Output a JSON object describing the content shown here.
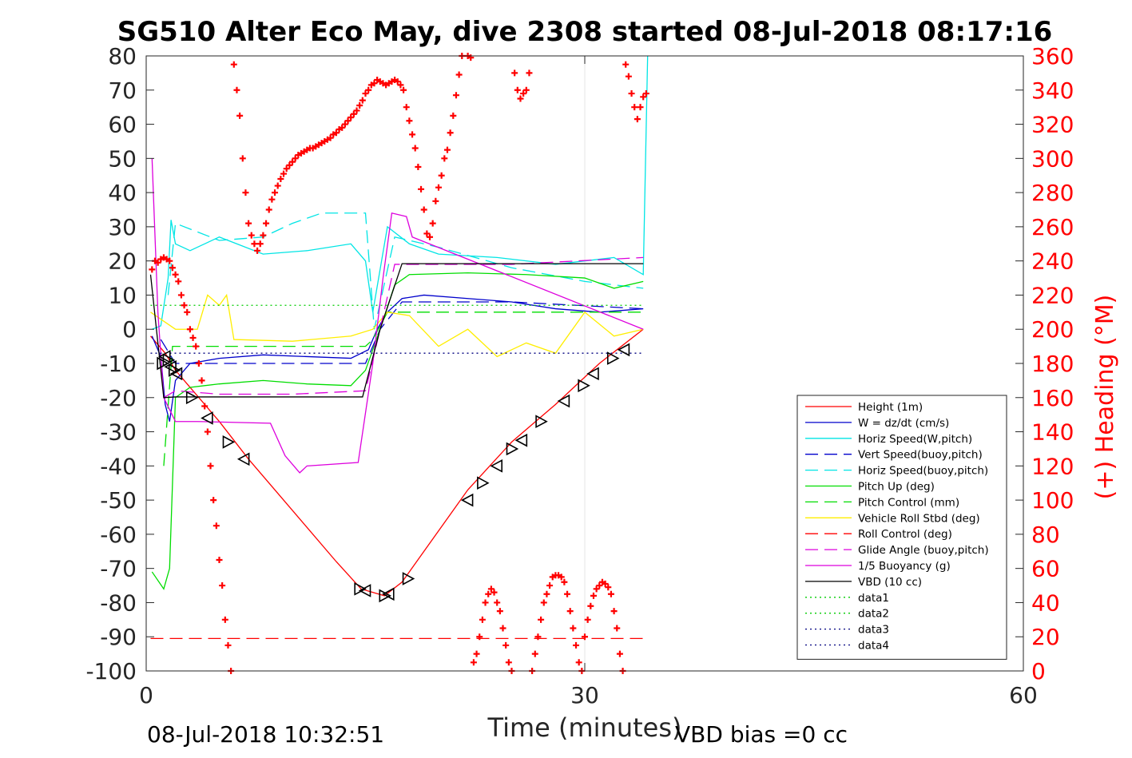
{
  "chart_data": {
    "type": "line",
    "title": "SG510 Alter Eco May, dive 2308 started 08-Jul-2018 08:17:16",
    "xlabel": "Time (minutes)",
    "ylabel": "",
    "y2label": "(+) Heading (°M)",
    "xlim": [
      0,
      60
    ],
    "ylim": [
      -100,
      80
    ],
    "y2lim": [
      0,
      360
    ],
    "xticks": [
      "0",
      "30",
      "60"
    ],
    "yticks": [
      "80",
      "70",
      "60",
      "50",
      "40",
      "30",
      "20",
      "10",
      "0",
      "-10",
      "-20",
      "-30",
      "-40",
      "-50",
      "-60",
      "-70",
      "-80",
      "-90",
      "-100"
    ],
    "y2ticks": [
      "360",
      "340",
      "320",
      "300",
      "280",
      "260",
      "240",
      "220",
      "200",
      "180",
      "160",
      "140",
      "120",
      "100",
      "80",
      "60",
      "40",
      "20",
      "0"
    ],
    "footer_left": "08-Jul-2018 10:32:51",
    "footer_right": "VBD bias =0 cc",
    "legend_position": "lower-right",
    "grid": true,
    "colors": {
      "height": "#ff0000",
      "w": "#0000cc",
      "horiz_speed": "#00e5e5",
      "pitch": "#00dd00",
      "roll": "#ffee00",
      "glide": "#dd00dd",
      "buoyancy": "#dd00dd",
      "vbd": "#000000",
      "heading": "#ff0000",
      "data1": "#00cc00",
      "data3": "#000080"
    },
    "legend": [
      "Height (1m)",
      "W = dz/dt (cm/s)",
      "Horiz Speed(W,pitch)",
      "Vert Speed(buoy,pitch)",
      "Horiz Speed(buoy,pitch)",
      "Pitch Up (deg)",
      "Pitch Control (mm)",
      "Vehicle Roll Stbd (deg)",
      "Roll Control (deg)",
      "Glide Angle (buoy,pitch)",
      "1/5 Buoyancy (g)",
      "VBD (10 cc)",
      "data1",
      "data2",
      "data3",
      "data4"
    ],
    "series": [
      {
        "name": "Height (1m)",
        "axis": "left",
        "x": [
          0.3,
          1.3,
          2.0,
          3.0,
          5.0,
          7.0,
          9.0,
          11.0,
          13.0,
          14.7,
          15.5,
          16.3,
          17.5,
          19.0,
          22.0,
          25.0,
          28.0,
          31.0,
          34.0
        ],
        "y": [
          -2,
          -7,
          -12,
          -17,
          -27,
          -38,
          -48,
          -58,
          -68,
          -76,
          -77,
          -78,
          -74,
          -65,
          -47,
          -33,
          -22,
          -10,
          0
        ]
      },
      {
        "name": "W = dz/dt (cm/s)",
        "axis": "left",
        "x": [
          0.4,
          1.0,
          1.3,
          1.6,
          2.0,
          3.0,
          5.0,
          8.0,
          11.0,
          14.0,
          15.2,
          15.8,
          16.5,
          17.5,
          19.0,
          22.0,
          25.0,
          28.0,
          31.0,
          34.0
        ],
        "y": [
          -2,
          -8,
          -22,
          -27,
          -15,
          -10,
          -8.5,
          -7.5,
          -8,
          -8.5,
          -6,
          0,
          5,
          9,
          10,
          9,
          8,
          6,
          5,
          6
        ]
      },
      {
        "name": "Horiz Speed(W,pitch)",
        "axis": "left",
        "x": [
          0.4,
          1.0,
          1.5,
          1.7,
          2.0,
          3.0,
          5.0,
          8.0,
          11.0,
          14.0,
          15.0,
          15.5,
          16.5,
          18.0,
          20.0,
          24.0,
          28.0,
          32.0,
          34.0,
          34.3
        ],
        "y": [
          0,
          1,
          15,
          32,
          25,
          23,
          27,
          22,
          23,
          25,
          20,
          5,
          30,
          25,
          22,
          21,
          19,
          21,
          16,
          80
        ]
      },
      {
        "name": "Vert Speed(buoy,pitch)",
        "axis": "left",
        "x": [
          1.0,
          2.0,
          5.0,
          10.0,
          15.0,
          16.0,
          17.5,
          25.0,
          34.0
        ],
        "y": [
          -3,
          -10,
          -10,
          -10,
          -10,
          0,
          8,
          8,
          6
        ]
      },
      {
        "name": "Horiz Speed(buoy,pitch)",
        "axis": "left",
        "x": [
          1.5,
          2.0,
          5.0,
          8.0,
          10.0,
          12.0,
          15.0,
          15.6,
          17.0,
          20.0,
          25.0,
          30.0,
          34.0
        ],
        "y": [
          10,
          31,
          26,
          27,
          31,
          34,
          34,
          0,
          27,
          24,
          18,
          14,
          12
        ]
      },
      {
        "name": "Pitch Up (deg)",
        "axis": "left",
        "x": [
          0.4,
          1.2,
          1.6,
          2.0,
          3.0,
          5.0,
          8.0,
          11.0,
          14.0,
          15.0,
          16.0,
          17.0,
          18.0,
          22.0,
          26.0,
          30.0,
          32.0,
          34.0
        ],
        "y": [
          -71,
          -76,
          -70,
          -20,
          -17,
          -16,
          -15,
          -16,
          -16.5,
          -12,
          0,
          13,
          16,
          16.5,
          16,
          15,
          12,
          14
        ]
      },
      {
        "name": "Pitch Control (mm)",
        "axis": "left",
        "x": [
          1.2,
          1.8,
          2.0,
          15.0,
          15.5,
          16.5,
          34.0
        ],
        "y": [
          -40,
          -5,
          -5,
          -5,
          -3,
          5,
          5
        ]
      },
      {
        "name": "Vehicle Roll Stbd (deg)",
        "axis": "left",
        "x": [
          0.3,
          2.0,
          3.5,
          4.2,
          5.0,
          5.5,
          6.0,
          10.0,
          14.0,
          15.5,
          16.5,
          18.0,
          20.0,
          22.0,
          24.0,
          26.0,
          28.0,
          30.0,
          32.0,
          34.0
        ],
        "y": [
          5,
          0,
          0,
          10,
          7,
          10,
          -3,
          -3.5,
          -2,
          0,
          5,
          4,
          -5,
          0,
          -8,
          -4,
          -7,
          5,
          -2,
          0
        ]
      },
      {
        "name": "Roll Control (deg)",
        "axis": "left",
        "x": [
          0.3,
          34.0
        ],
        "y": [
          -90.5,
          -90.5
        ]
      },
      {
        "name": "Glide Angle (buoy,pitch)",
        "axis": "left",
        "x": [
          1.2,
          2.0,
          5.0,
          10.0,
          15.0,
          16.0,
          17.0,
          25.0,
          34.0
        ],
        "y": [
          -20,
          -18,
          -19,
          -19,
          -18,
          0,
          19,
          19,
          21
        ]
      },
      {
        "name": "1/5 Buoyancy (g)",
        "axis": "left",
        "x": [
          0.4,
          0.8,
          1.2,
          2.0,
          3.5,
          8.5,
          9.5,
          10.5,
          11.0,
          14.5,
          15.5,
          16.2,
          16.8,
          17.8,
          18.2,
          34.0
        ],
        "y": [
          50,
          5,
          -20,
          -27,
          -27,
          -27.5,
          -37,
          -42,
          -40,
          -39,
          -10,
          15,
          34,
          33,
          27,
          0
        ]
      },
      {
        "name": "VBD (10 cc)",
        "axis": "left",
        "x": [
          0.3,
          1.2,
          2.0,
          14.8,
          16.0,
          17.5,
          34.0
        ],
        "y": [
          16,
          -20,
          -19.8,
          -19.8,
          0,
          19.2,
          19.2
        ]
      },
      {
        "name": "data1",
        "axis": "left",
        "x": [
          0.3,
          34.0
        ],
        "y": [
          7,
          7
        ]
      },
      {
        "name": "data3",
        "axis": "left",
        "x": [
          0.3,
          34.0
        ],
        "y": [
          -7,
          -7
        ]
      },
      {
        "name": "(+) Heading (°M)",
        "axis": "right",
        "style": "markers",
        "x": [
          0.4,
          0.6,
          0.8,
          1.0,
          1.2,
          1.4,
          1.6,
          1.8,
          2.0,
          2.2,
          2.4,
          2.6,
          2.8,
          3.0,
          3.2,
          3.4,
          3.6,
          3.8,
          4.0,
          4.2,
          4.4,
          4.6,
          4.8,
          5.0,
          5.2,
          5.4,
          5.6,
          5.8,
          6.0,
          6.2,
          6.4,
          6.6,
          6.8,
          7.0,
          7.2,
          7.4,
          7.6,
          7.8,
          8.0,
          8.2,
          8.4,
          8.6,
          8.8,
          9.0,
          9.2,
          9.4,
          9.6,
          9.8,
          10.0,
          10.2,
          10.4,
          10.6,
          10.8,
          11.0,
          11.2,
          11.4,
          11.6,
          11.8,
          12.0,
          12.2,
          12.4,
          12.6,
          12.8,
          13.0,
          13.2,
          13.4,
          13.6,
          13.8,
          14.0,
          14.2,
          14.4,
          14.6,
          14.8,
          15.0,
          15.2,
          15.4,
          15.6,
          15.8,
          16.0,
          16.2,
          16.4,
          16.6,
          16.8,
          17.0,
          17.2,
          17.4,
          17.6,
          17.8,
          18.0,
          18.2,
          18.4,
          18.6,
          18.8,
          19.0,
          19.2,
          19.4,
          19.6,
          19.8,
          20.0,
          20.2,
          20.4,
          20.6,
          20.8,
          21.0,
          21.2,
          21.4,
          21.6,
          21.8,
          22.0,
          22.2,
          22.4,
          22.6,
          22.8,
          23.0,
          23.2,
          23.4,
          23.6,
          23.8,
          24.0,
          24.2,
          24.4,
          24.6,
          24.8,
          25.0,
          25.2,
          25.4,
          25.6,
          25.8,
          26.0,
          26.2,
          26.4,
          26.6,
          26.8,
          27.0,
          27.2,
          27.4,
          27.6,
          27.8,
          28.0,
          28.2,
          28.4,
          28.6,
          28.8,
          29.0,
          29.2,
          29.4,
          29.6,
          29.8,
          30.0,
          30.2,
          30.4,
          30.6,
          30.8,
          31.0,
          31.2,
          31.4,
          31.6,
          31.8,
          32.0,
          32.2,
          32.4,
          32.6,
          32.8,
          33.0,
          33.2,
          33.4,
          33.6,
          33.8,
          34.0,
          34.2
        ],
        "y": [
          235,
          240,
          239,
          241,
          242,
          241,
          240,
          236,
          232,
          228,
          220,
          214,
          210,
          200,
          195,
          190,
          180,
          170,
          155,
          140,
          120,
          100,
          85,
          65,
          50,
          30,
          15,
          0,
          355,
          340,
          325,
          300,
          280,
          262,
          255,
          250,
          246,
          250,
          255,
          262,
          270,
          276,
          280,
          284,
          288,
          291,
          294,
          296,
          298,
          300,
          302,
          303,
          304,
          305,
          306,
          306,
          307,
          308,
          309,
          310,
          311,
          312,
          314,
          315,
          317,
          318,
          320,
          322,
          324,
          326,
          328,
          331,
          334,
          338,
          340,
          343,
          344,
          346,
          345,
          344,
          343,
          344,
          345,
          346,
          345,
          343,
          340,
          330,
          322,
          314,
          306,
          295,
          282,
          270,
          256,
          254,
          262,
          275,
          283,
          290,
          300,
          305,
          315,
          325,
          337,
          349,
          360,
          362,
          360,
          359,
          5,
          10,
          20,
          30,
          40,
          45,
          48,
          46,
          40,
          35,
          25,
          15,
          5,
          0,
          350,
          340,
          335,
          338,
          340,
          350,
          0,
          10,
          20,
          30,
          40,
          45,
          50,
          55,
          56,
          56,
          55,
          52,
          45,
          35,
          25,
          15,
          5,
          0,
          20,
          30,
          38,
          44,
          48,
          50,
          52,
          51,
          49,
          45,
          35,
          25,
          10,
          0,
          355,
          348,
          338,
          330,
          323,
          330,
          336,
          338
        ]
      },
      {
        "name": "Height markers",
        "axis": "left",
        "style": "triangles",
        "x": [
          1.1,
          1.3,
          1.5,
          1.7,
          1.9,
          2.1,
          3.1,
          4.2,
          5.6,
          6.7,
          14.6,
          15.0,
          16.3,
          16.6,
          17.9,
          22.0,
          23.0,
          24.0,
          25.0,
          25.7,
          27.0,
          28.6,
          29.9,
          30.6,
          31.9,
          32.7
        ],
        "y": [
          -10,
          -8,
          -9,
          -11,
          -12,
          -13,
          -20,
          -26,
          -33,
          -38,
          -76,
          -76.5,
          -78,
          -77.5,
          -73,
          -50,
          -45,
          -40,
          -35,
          -32.5,
          -27,
          -21,
          -16.5,
          -13,
          -8.5,
          -6
        ]
      }
    ]
  }
}
